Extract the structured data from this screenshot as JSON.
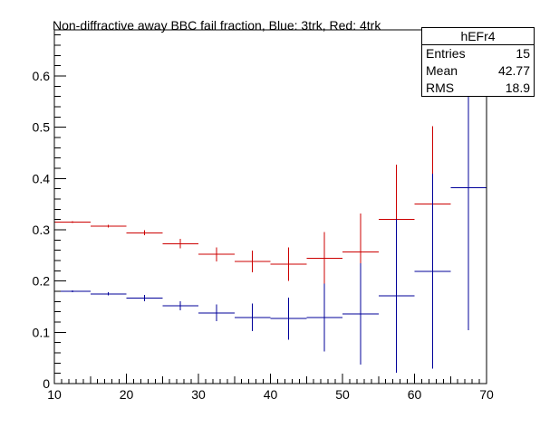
{
  "chart_data": {
    "type": "scatter",
    "title": "Non-diffractive away BBC fail fraction, Blue: 3trk, Red: 4trk",
    "xlabel": "",
    "ylabel": "",
    "xlim": [
      10,
      70
    ],
    "ylim": [
      0,
      0.69
    ],
    "xticks": [
      10,
      20,
      30,
      40,
      50,
      60,
      70
    ],
    "yticks": [
      0,
      0.1,
      0.2,
      0.3,
      0.4,
      0.5,
      0.6
    ],
    "tick_labels": {
      "x": [
        "10",
        "20",
        "30",
        "40",
        "50",
        "60",
        "70"
      ],
      "y": [
        "0",
        "0.1",
        "0.2",
        "0.3",
        "0.4",
        "0.5",
        "0.6"
      ]
    },
    "grid": false,
    "series": [
      {
        "color": "#cc0000",
        "points": [
          {
            "x": 12.5,
            "y": 0.315,
            "xerr": 2.5,
            "yerr": 0.002
          },
          {
            "x": 17.5,
            "y": 0.307,
            "xerr": 2.5,
            "yerr": 0.003
          },
          {
            "x": 22.5,
            "y": 0.294,
            "xerr": 2.5,
            "yerr": 0.005
          },
          {
            "x": 27.5,
            "y": 0.273,
            "xerr": 2.5,
            "yerr": 0.009
          },
          {
            "x": 32.5,
            "y": 0.252,
            "xerr": 2.5,
            "yerr": 0.014
          },
          {
            "x": 37.5,
            "y": 0.238,
            "xerr": 2.5,
            "yerr": 0.021
          },
          {
            "x": 42.5,
            "y": 0.233,
            "xerr": 2.5,
            "yerr": 0.033
          },
          {
            "x": 47.5,
            "y": 0.244,
            "xerr": 2.5,
            "yerr": 0.052
          },
          {
            "x": 52.5,
            "y": 0.257,
            "xerr": 2.5,
            "yerr": 0.075
          },
          {
            "x": 57.5,
            "y": 0.32,
            "xerr": 2.5,
            "yerr": 0.107
          },
          {
            "x": 62.5,
            "y": 0.35,
            "xerr": 2.5,
            "yerr": 0.152
          },
          {
            "x": 67.5,
            "y": 0.62,
            "xerr": 2.5,
            "yerr": 0.23
          }
        ]
      },
      {
        "color": "#000099",
        "points": [
          {
            "x": 12.5,
            "y": 0.18,
            "xerr": 2.5,
            "yerr": 0.002
          },
          {
            "x": 17.5,
            "y": 0.175,
            "xerr": 2.5,
            "yerr": 0.003
          },
          {
            "x": 22.5,
            "y": 0.167,
            "xerr": 2.5,
            "yerr": 0.006
          },
          {
            "x": 27.5,
            "y": 0.152,
            "xerr": 2.5,
            "yerr": 0.009
          },
          {
            "x": 32.5,
            "y": 0.138,
            "xerr": 2.5,
            "yerr": 0.016
          },
          {
            "x": 37.5,
            "y": 0.129,
            "xerr": 2.5,
            "yerr": 0.027
          },
          {
            "x": 42.5,
            "y": 0.127,
            "xerr": 2.5,
            "yerr": 0.041
          },
          {
            "x": 47.5,
            "y": 0.129,
            "xerr": 2.5,
            "yerr": 0.066
          },
          {
            "x": 52.5,
            "y": 0.136,
            "xerr": 2.5,
            "yerr": 0.099
          },
          {
            "x": 57.5,
            "y": 0.171,
            "xerr": 2.5,
            "yerr": 0.15
          },
          {
            "x": 62.5,
            "y": 0.219,
            "xerr": 2.5,
            "yerr": 0.19
          },
          {
            "x": 67.5,
            "y": 0.382,
            "xerr": 2.5,
            "yerr": 0.278
          }
        ]
      }
    ]
  },
  "stats_box": {
    "name": "hEFr4",
    "rows": [
      {
        "label": "Entries",
        "value": "15"
      },
      {
        "label": "Mean",
        "value": "42.77"
      },
      {
        "label": "RMS",
        "value": "18.9"
      }
    ]
  }
}
